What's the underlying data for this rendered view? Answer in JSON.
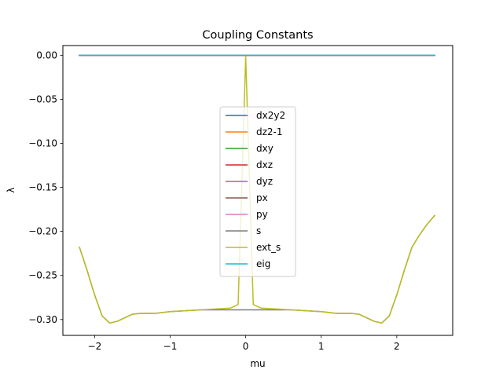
{
  "chart_data": {
    "type": "line",
    "title": "Coupling Constants",
    "xlabel": "mu",
    "ylabel": "λ",
    "xlim": [
      -2.42,
      2.74
    ],
    "ylim": [
      -0.318,
      0.011
    ],
    "xticks": [
      -2,
      -1,
      0,
      1,
      2
    ],
    "xtick_labels": [
      "−2",
      "−1",
      "0",
      "1",
      "2"
    ],
    "yticks": [
      0.0,
      -0.05,
      -0.1,
      -0.15,
      -0.2,
      -0.25,
      -0.3
    ],
    "ytick_labels": [
      "0.00",
      "−0.05",
      "−0.10",
      "−0.15",
      "−0.20",
      "−0.25",
      "−0.30"
    ],
    "grid": false,
    "legend_position": "center",
    "series": [
      {
        "name": "dx2y2",
        "color": "#1f77b4",
        "x": [
          -2.2,
          2.5
        ],
        "y": [
          0.0,
          0.0
        ]
      },
      {
        "name": "dz2-1",
        "color": "#ff7f0e",
        "x": [
          -2.2,
          2.5
        ],
        "y": [
          0.0,
          0.0
        ]
      },
      {
        "name": "dxy",
        "color": "#2ca02c",
        "x": [
          -2.2,
          2.5
        ],
        "y": [
          0.0,
          0.0
        ]
      },
      {
        "name": "dxz",
        "color": "#d62728",
        "x": [
          -2.2,
          2.5
        ],
        "y": [
          0.0,
          0.0
        ]
      },
      {
        "name": "dyz",
        "color": "#9467bd",
        "x": [
          -2.2,
          2.5
        ],
        "y": [
          0.0,
          0.0
        ]
      },
      {
        "name": "px",
        "color": "#8c564b",
        "x": [
          -2.2,
          2.5
        ],
        "y": [
          0.0,
          0.0
        ]
      },
      {
        "name": "py",
        "color": "#e377c2",
        "x": [
          -2.2,
          2.5
        ],
        "y": [
          0.0,
          0.0
        ]
      },
      {
        "name": "s",
        "color": "#7f7f7f",
        "x": [
          -2.2,
          -2.1,
          -2.0,
          -1.9,
          -1.8,
          -1.7,
          -1.6,
          -1.5,
          -1.4,
          -1.2,
          -1.0,
          -0.8,
          -0.6,
          -0.4,
          -0.2,
          0.0,
          0.2,
          0.4,
          0.6,
          0.8,
          1.0,
          1.2,
          1.4,
          1.5,
          1.6,
          1.7,
          1.8,
          1.9,
          2.0,
          2.1,
          2.2,
          2.3,
          2.4,
          2.5
        ],
        "y": [
          -0.218,
          -0.244,
          -0.272,
          -0.296,
          -0.304,
          -0.302,
          -0.298,
          -0.294,
          -0.293,
          -0.293,
          -0.291,
          -0.29,
          -0.289,
          -0.289,
          -0.289,
          -0.289,
          -0.289,
          -0.289,
          -0.289,
          -0.29,
          -0.291,
          -0.293,
          -0.293,
          -0.294,
          -0.298,
          -0.302,
          -0.304,
          -0.296,
          -0.272,
          -0.244,
          -0.218,
          -0.204,
          -0.192,
          -0.182
        ]
      },
      {
        "name": "ext_s",
        "color": "#bcbd22",
        "x": [
          -2.2,
          -2.1,
          -2.0,
          -1.9,
          -1.8,
          -1.7,
          -1.6,
          -1.5,
          -1.4,
          -1.2,
          -1.0,
          -0.8,
          -0.6,
          -0.4,
          -0.2,
          -0.1,
          0.0,
          0.1,
          0.2,
          0.4,
          0.6,
          0.8,
          1.0,
          1.2,
          1.4,
          1.5,
          1.6,
          1.7,
          1.8,
          1.9,
          2.0,
          2.1,
          2.2,
          2.3,
          2.4,
          2.5
        ],
        "y": [
          -0.218,
          -0.244,
          -0.272,
          -0.296,
          -0.304,
          -0.302,
          -0.298,
          -0.294,
          -0.293,
          -0.293,
          -0.291,
          -0.29,
          -0.289,
          -0.288,
          -0.287,
          -0.283,
          -0.001,
          -0.283,
          -0.287,
          -0.288,
          -0.289,
          -0.29,
          -0.291,
          -0.293,
          -0.293,
          -0.294,
          -0.298,
          -0.302,
          -0.304,
          -0.296,
          -0.272,
          -0.244,
          -0.218,
          -0.204,
          -0.192,
          -0.182
        ]
      },
      {
        "name": "eig",
        "color": "#17becf",
        "x": [
          -2.2,
          2.5
        ],
        "y": [
          0.0,
          0.0
        ]
      }
    ]
  }
}
